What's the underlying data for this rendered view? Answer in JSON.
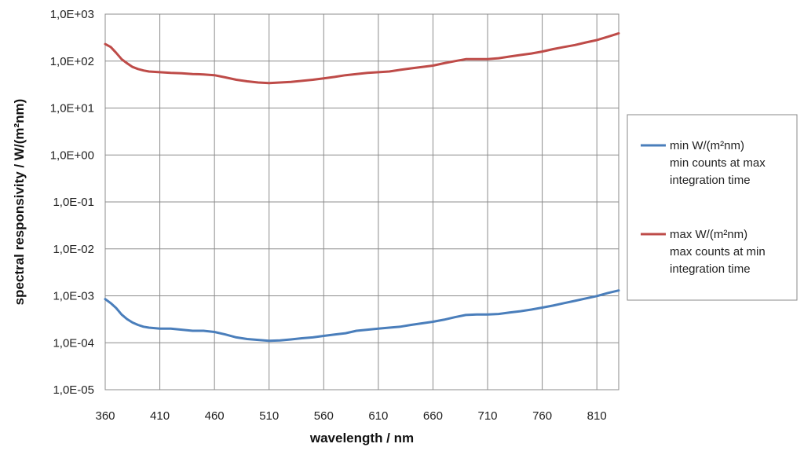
{
  "chart_data": {
    "type": "line",
    "xlabel": "wavelength / nm",
    "ylabel": "spectral responsivity  / W/(m²nm)",
    "x_scale": "linear",
    "y_scale": "log",
    "xlim": [
      360,
      830
    ],
    "ylim": [
      1e-05,
      1000
    ],
    "x_ticks": [
      360,
      410,
      460,
      510,
      560,
      610,
      660,
      710,
      760,
      810
    ],
    "x_tick_labels": [
      "360",
      "410",
      "460",
      "510",
      "560",
      "610",
      "660",
      "710",
      "760",
      "810"
    ],
    "y_ticks": [
      1e-05,
      0.0001,
      0.001,
      0.01,
      0.1,
      1,
      10,
      100,
      1000
    ],
    "y_tick_labels": [
      "1,0E-05",
      "1,0E-04",
      "1,0E-03",
      "1,0E-02",
      "1,0E-01",
      "1,0E+00",
      "1,0E+01",
      "1,0E+02",
      "1,0E+03"
    ],
    "grid": true,
    "legend_position": "right",
    "series": [
      {
        "name": "min W/(m²nm)",
        "legend_lines": [
          "min W/(m²nm)",
          "min counts at max",
          "integration time"
        ],
        "color": "#4a7ebb",
        "x": [
          360,
          365,
          370,
          375,
          380,
          385,
          390,
          395,
          400,
          410,
          420,
          430,
          440,
          450,
          460,
          470,
          480,
          490,
          500,
          510,
          520,
          530,
          540,
          550,
          560,
          570,
          580,
          590,
          600,
          610,
          620,
          630,
          640,
          650,
          660,
          670,
          680,
          690,
          700,
          710,
          720,
          730,
          740,
          750,
          760,
          770,
          780,
          790,
          800,
          810,
          820,
          830
        ],
        "y": [
          0.00085,
          0.0007,
          0.00055,
          0.0004,
          0.00032,
          0.00027,
          0.00024,
          0.00022,
          0.00021,
          0.0002,
          0.0002,
          0.00019,
          0.00018,
          0.00018,
          0.00017,
          0.00015,
          0.00013,
          0.00012,
          0.000115,
          0.00011,
          0.000112,
          0.000118,
          0.000125,
          0.00013,
          0.00014,
          0.00015,
          0.00016,
          0.00018,
          0.00019,
          0.0002,
          0.00021,
          0.00022,
          0.00024,
          0.00026,
          0.00028,
          0.00031,
          0.00035,
          0.00039,
          0.0004,
          0.0004,
          0.00041,
          0.00044,
          0.00047,
          0.00051,
          0.00056,
          0.00062,
          0.0007,
          0.00078,
          0.00088,
          0.00099,
          0.00115,
          0.0013
        ]
      },
      {
        "name": "max W/(m²nm)",
        "legend_lines": [
          "max W/(m²nm)",
          "max counts at min",
          "integration time"
        ],
        "color": "#be4b48",
        "x": [
          360,
          365,
          370,
          375,
          380,
          385,
          390,
          395,
          400,
          410,
          420,
          430,
          440,
          450,
          460,
          470,
          480,
          490,
          500,
          510,
          520,
          530,
          540,
          550,
          560,
          570,
          580,
          590,
          600,
          610,
          620,
          630,
          640,
          650,
          660,
          670,
          680,
          690,
          700,
          710,
          720,
          730,
          740,
          750,
          760,
          770,
          780,
          790,
          800,
          810,
          820,
          830
        ],
        "y": [
          230,
          200,
          150,
          110,
          90,
          75,
          68,
          63,
          60,
          58,
          56,
          55,
          53,
          52,
          50,
          45,
          40,
          37,
          35,
          34,
          35,
          36,
          38,
          40,
          43,
          46,
          50,
          53,
          56,
          58,
          60,
          65,
          70,
          75,
          80,
          90,
          100,
          110,
          110,
          110,
          115,
          125,
          135,
          145,
          160,
          180,
          200,
          220,
          250,
          280,
          330,
          390
        ]
      }
    ]
  }
}
